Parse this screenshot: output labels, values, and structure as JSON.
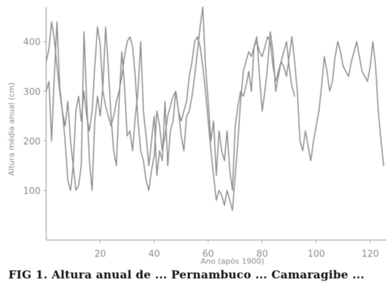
{
  "caption": "FIG 1. Altura anual de ... Pernambuco ... Camaragibe ...",
  "chart_data": {
    "type": "line",
    "title": "",
    "xlabel": "Ano (após 1900)",
    "ylabel": "Altura média anual (cm)",
    "xlim": [
      0,
      126
    ],
    "ylim": [
      0,
      470
    ],
    "xticks": [
      20,
      40,
      60,
      80,
      100,
      120
    ],
    "yticks": [
      100,
      200,
      300,
      400
    ],
    "grid": false,
    "legend": "none",
    "line_color": "#8f8f8f",
    "series": [
      {
        "x": [
          0,
          1,
          2,
          3,
          4,
          5,
          6,
          7,
          8,
          9,
          10,
          11,
          12,
          13,
          14,
          15,
          16,
          17,
          18,
          19,
          20,
          21,
          22,
          23,
          24,
          25,
          26,
          27,
          28,
          29,
          30,
          31,
          32,
          33,
          34,
          35,
          36,
          37,
          38,
          39,
          40,
          41,
          42,
          43,
          44,
          45,
          46,
          47,
          48,
          49,
          50,
          51,
          52,
          53,
          54,
          55,
          56,
          57,
          58,
          59,
          60,
          61,
          62,
          63,
          64,
          65,
          66,
          67,
          68,
          69,
          70,
          71,
          72,
          73,
          74,
          75,
          76,
          77,
          78,
          79,
          80,
          81,
          82,
          83,
          84,
          85,
          86,
          87,
          88,
          89,
          90,
          91,
          92
        ],
        "y": [
          360,
          385,
          440,
          405,
          350,
          300,
          260,
          200,
          120,
          100,
          150,
          260,
          290,
          240,
          300,
          250,
          220,
          260,
          350,
          430,
          395,
          300,
          270,
          250,
          230,
          250,
          280,
          300,
          330,
          370,
          400,
          410,
          390,
          330,
          240,
          180,
          160,
          120,
          100,
          140,
          170,
          260,
          230,
          180,
          210,
          250,
          270,
          290,
          300,
          260,
          240,
          260,
          280,
          330,
          360,
          400,
          410,
          390,
          350,
          300,
          240,
          180,
          130,
          80,
          100,
          90,
          70,
          100,
          80,
          60,
          130,
          200,
          280,
          340,
          360,
          380,
          370,
          390,
          400,
          380,
          370,
          390,
          410,
          400,
          350,
          320,
          340,
          360,
          380,
          400,
          350,
          310,
          290
        ]
      },
      {
        "x": [
          0,
          1,
          2,
          3,
          4,
          5,
          6,
          7,
          8,
          9,
          10,
          11,
          12,
          13,
          14,
          15,
          16,
          17,
          18,
          19,
          20,
          21,
          22,
          23,
          24,
          25,
          26,
          27,
          28,
          29,
          30,
          31,
          32,
          33,
          34,
          35,
          36,
          37,
          38,
          39,
          40,
          41,
          42,
          43,
          44,
          45,
          46,
          47,
          48,
          49,
          50,
          51,
          52,
          53,
          54,
          55,
          56,
          57,
          58,
          59,
          60,
          61,
          62,
          63,
          64,
          65,
          66,
          67,
          68,
          69,
          70,
          71,
          72,
          73,
          74,
          75,
          76,
          77,
          78,
          79,
          80,
          81,
          82,
          83,
          84,
          85,
          86,
          87,
          88,
          89,
          90,
          91,
          92,
          93,
          94,
          95,
          96,
          97,
          98,
          99,
          100,
          101,
          102,
          103,
          104,
          105,
          106,
          107,
          108,
          109,
          110,
          111,
          112,
          113,
          114,
          115,
          116,
          117,
          118,
          119,
          120,
          121,
          122,
          123,
          124,
          125
        ],
        "y": [
          300,
          320,
          200,
          330,
          440,
          310,
          260,
          230,
          280,
          200,
          150,
          100,
          110,
          150,
          420,
          280,
          160,
          100,
          240,
          290,
          250,
          310,
          430,
          350,
          250,
          180,
          150,
          280,
          380,
          310,
          210,
          220,
          180,
          250,
          300,
          400,
          260,
          210,
          150,
          200,
          250,
          130,
          180,
          160,
          280,
          150,
          220,
          240,
          300,
          260,
          210,
          180,
          250,
          260,
          290,
          330,
          380,
          430,
          470,
          350,
          280,
          200,
          240,
          130,
          220,
          180,
          160,
          220,
          140,
          100,
          230,
          270,
          300,
          290,
          310,
          340,
          300,
          390,
          410,
          330,
          260,
          300,
          350,
          420,
          380,
          300,
          330,
          360,
          350,
          330,
          370,
          410,
          360,
          300,
          200,
          180,
          220,
          190,
          160,
          200,
          230,
          260,
          310,
          370,
          340,
          300,
          320,
          370,
          400,
          380,
          350,
          340,
          330,
          360,
          380,
          400,
          370,
          340,
          330,
          320,
          350,
          400,
          350,
          260,
          200,
          150
        ]
      }
    ]
  }
}
